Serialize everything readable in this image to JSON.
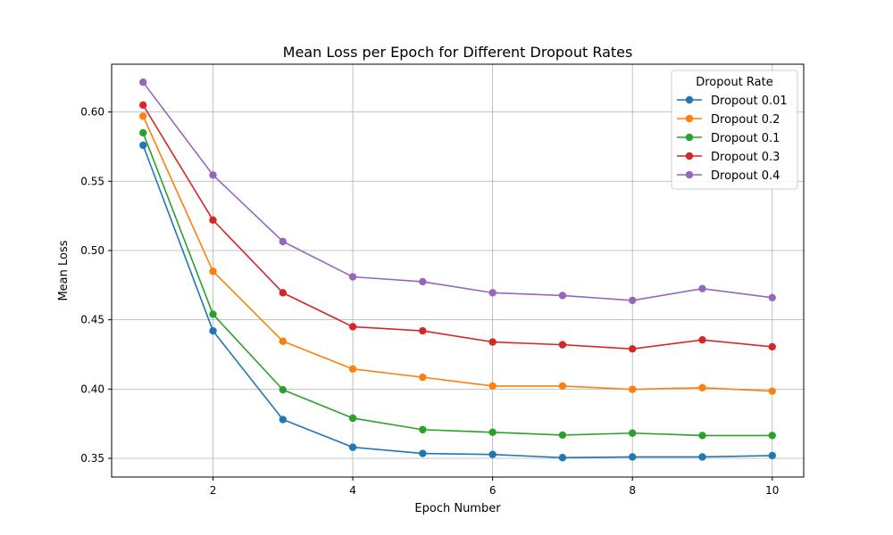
{
  "chart_data": {
    "type": "line",
    "title": "Mean Loss per Epoch for Different Dropout Rates",
    "xlabel": "Epoch Number",
    "ylabel": "Mean Loss",
    "x": [
      1,
      2,
      3,
      4,
      5,
      6,
      7,
      8,
      9,
      10
    ],
    "xlim": [
      0.55,
      10.45
    ],
    "ylim": [
      0.3365,
      0.6345
    ],
    "xticks": [
      2,
      4,
      6,
      8,
      10
    ],
    "xtick_labels": [
      "2",
      "4",
      "6",
      "8",
      "10"
    ],
    "yticks": [
      0.35,
      0.4,
      0.45,
      0.5,
      0.55,
      0.6
    ],
    "ytick_labels": [
      "0.35",
      "0.40",
      "0.45",
      "0.50",
      "0.55",
      "0.60"
    ],
    "grid": true,
    "legend": {
      "title": "Dropout Rate",
      "placement": "top-right"
    },
    "series": [
      {
        "name": "Dropout 0.01",
        "color": "#1f77b4",
        "values": [
          0.576,
          0.442,
          0.378,
          0.358,
          0.3535,
          0.3528,
          0.3505,
          0.351,
          0.351,
          0.352
        ]
      },
      {
        "name": "Dropout 0.2",
        "color": "#ff7f0e",
        "values": [
          0.597,
          0.485,
          0.4345,
          0.4145,
          0.4085,
          0.4022,
          0.4022,
          0.3998,
          0.401,
          0.3985
        ]
      },
      {
        "name": "Dropout 0.1",
        "color": "#2ca02c",
        "values": [
          0.585,
          0.454,
          0.3995,
          0.379,
          0.3707,
          0.3688,
          0.3668,
          0.3682,
          0.3665,
          0.3665
        ]
      },
      {
        "name": "Dropout 0.3",
        "color": "#d62728",
        "values": [
          0.605,
          0.522,
          0.4695,
          0.445,
          0.442,
          0.434,
          0.432,
          0.429,
          0.4355,
          0.4305
        ]
      },
      {
        "name": "Dropout 0.4",
        "color": "#9467bd",
        "values": [
          0.6215,
          0.5545,
          0.5065,
          0.481,
          0.4775,
          0.4695,
          0.4675,
          0.464,
          0.4725,
          0.466
        ]
      }
    ]
  }
}
